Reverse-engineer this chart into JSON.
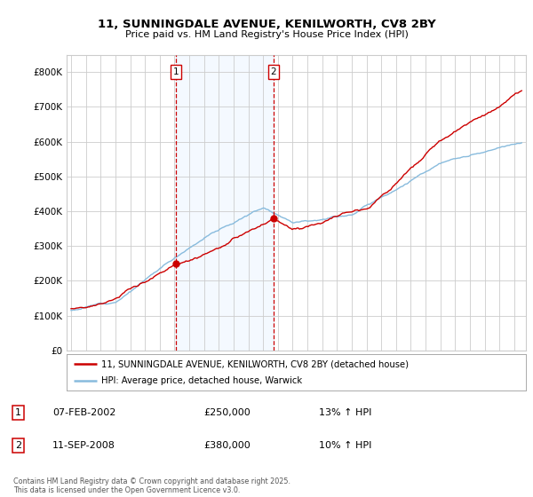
{
  "title": "11, SUNNINGDALE AVENUE, KENILWORTH, CV8 2BY",
  "subtitle": "Price paid vs. HM Land Registry's House Price Index (HPI)",
  "legend_line1": "11, SUNNINGDALE AVENUE, KENILWORTH, CV8 2BY (detached house)",
  "legend_line2": "HPI: Average price, detached house, Warwick",
  "footnote": "Contains HM Land Registry data © Crown copyright and database right 2025.\nThis data is licensed under the Open Government Licence v3.0.",
  "sale1_date": "07-FEB-2002",
  "sale1_price": "£250,000",
  "sale1_hpi": "13% ↑ HPI",
  "sale1_year": 2002.1,
  "sale1_value": 250000,
  "sale2_date": "11-SEP-2008",
  "sale2_price": "£380,000",
  "sale2_hpi": "10% ↑ HPI",
  "sale2_year": 2008.7,
  "sale2_value": 380000,
  "red_color": "#CC0000",
  "blue_color": "#88BBDD",
  "grid_color": "#CCCCCC",
  "vline_color": "#CC0000",
  "shade_color": "#DDEEFF",
  "background_color": "#FFFFFF",
  "ylim": [
    0,
    850000
  ],
  "xlim_start": 1994.7,
  "xlim_end": 2025.8
}
